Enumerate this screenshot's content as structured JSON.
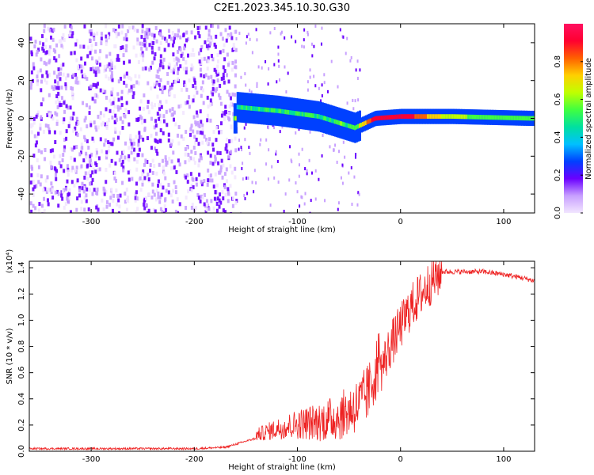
{
  "title": "C2E1.2023.345.10.30.G30",
  "chart_data": [
    {
      "type": "heatmap",
      "title": "C2E1.2023.345.10.30.G30",
      "xlabel": "Height of straight line (km)",
      "ylabel": "Frequency (Hz)",
      "xlim": [
        -360,
        130
      ],
      "ylim": [
        -50,
        50
      ],
      "x_ticks": [
        -300,
        -200,
        -100,
        0,
        100
      ],
      "y_ticks": [
        -40,
        -20,
        0,
        20,
        40
      ],
      "colorbar": {
        "label": "Normalized spectral amplitude",
        "range": [
          0.0,
          1.0
        ],
        "ticks": [
          "0.0",
          "0.2",
          "0.4",
          "0.6",
          "0.8"
        ],
        "colors": [
          "#f2e6ff",
          "#c8a0ff",
          "#6a00ff",
          "#0040ff",
          "#00c0ff",
          "#00e0a0",
          "#40ff40",
          "#c0ff00",
          "#ffd000",
          "#ff6000",
          "#ff0030",
          "#ff1060"
        ]
      },
      "description_points": [
        {
          "x": -160,
          "freq": 6,
          "amp": 0.45
        },
        {
          "x": -120,
          "freq": 4,
          "amp": 0.5
        },
        {
          "x": -80,
          "freq": 1,
          "amp": 0.5
        },
        {
          "x": -45,
          "freq": -5,
          "amp": 0.55
        },
        {
          "x": -25,
          "freq": 0,
          "amp": 0.95
        },
        {
          "x": 0,
          "freq": 1,
          "amp": 0.95
        },
        {
          "x": 50,
          "freq": 1,
          "amp": 0.6
        },
        {
          "x": 125,
          "freq": 0,
          "amp": 0.55
        }
      ]
    },
    {
      "type": "line",
      "xlabel": "Height of straight line (km)",
      "ylabel": "SNR (10 * v/v)",
      "yscale_label": "(x10⁴)",
      "xlim": [
        -360,
        130
      ],
      "ylim": [
        0.0,
        1.45
      ],
      "x_ticks": [
        -300,
        -200,
        -100,
        0,
        100
      ],
      "y_ticks": [
        "0.0",
        "0.2",
        "0.4",
        "0.6",
        "0.8",
        "1.0",
        "1.2",
        "1.4"
      ],
      "color": "#ee2222",
      "x": [
        -360,
        -300,
        -250,
        -200,
        -170,
        -140,
        -120,
        -100,
        -80,
        -60,
        -40,
        -30,
        -20,
        -10,
        0,
        10,
        20,
        30,
        40,
        60,
        80,
        100,
        120,
        130
      ],
      "values": [
        0.02,
        0.02,
        0.02,
        0.02,
        0.03,
        0.1,
        0.13,
        0.15,
        0.15,
        0.17,
        0.25,
        0.35,
        0.6,
        0.8,
        0.95,
        1.1,
        1.2,
        1.3,
        1.37,
        1.37,
        1.37,
        1.35,
        1.32,
        1.3
      ]
    }
  ]
}
